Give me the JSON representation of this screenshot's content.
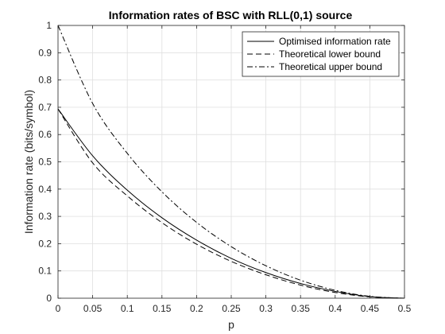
{
  "chart_data": {
    "type": "line",
    "title": "Information rates of BSC with RLL(0,1) source",
    "xlabel": "p",
    "ylabel": "Information rate  (bits/symbol)",
    "xlim": [
      0,
      0.5
    ],
    "ylim": [
      0,
      1
    ],
    "xticks": [
      0,
      0.05,
      0.1,
      0.15,
      0.2,
      0.25,
      0.3,
      0.35,
      0.4,
      0.45,
      0.5
    ],
    "xtick_labels": [
      "0",
      "0.05",
      "0.1",
      "0.15",
      "0.2",
      "0.25",
      "0.3",
      "0.35",
      "0.4",
      "0.45",
      "0.5"
    ],
    "yticks": [
      0,
      0.1,
      0.2,
      0.3,
      0.4,
      0.5,
      0.6,
      0.7,
      0.8,
      0.9,
      1
    ],
    "ytick_labels": [
      "0",
      "0.1",
      "0.2",
      "0.3",
      "0.4",
      "0.5",
      "0.6",
      "0.7",
      "0.8",
      "0.9",
      "1"
    ],
    "grid": true,
    "legend_position": "top-right",
    "x": [
      0,
      0.05,
      0.1,
      0.15,
      0.2,
      0.25,
      0.3,
      0.35,
      0.4,
      0.45,
      0.5
    ],
    "series": [
      {
        "name": "Optimised information rate",
        "style": "solid",
        "values": [
          0.694,
          0.522,
          0.396,
          0.295,
          0.213,
          0.146,
          0.094,
          0.054,
          0.025,
          0.006,
          0
        ]
      },
      {
        "name": "Theoretical lower bound",
        "style": "dashed",
        "values": [
          0.694,
          0.496,
          0.375,
          0.277,
          0.198,
          0.135,
          0.086,
          0.048,
          0.021,
          0.005,
          0
        ]
      },
      {
        "name": "Theoretical upper bound",
        "style": "dashdot",
        "values": [
          1.0,
          0.714,
          0.531,
          0.39,
          0.278,
          0.189,
          0.119,
          0.066,
          0.029,
          0.007,
          0
        ]
      }
    ]
  }
}
